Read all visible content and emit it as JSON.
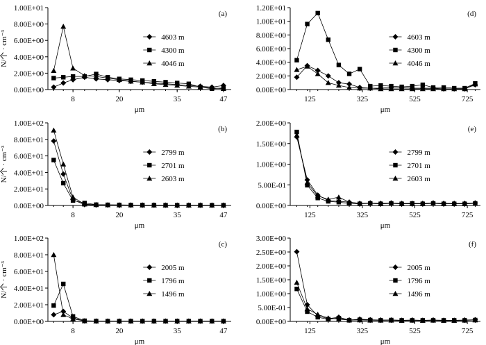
{
  "chart_data": [
    {
      "id": "a",
      "type": "line",
      "panel_label": "(a)",
      "xlabel": "μm",
      "ylabel": "N/个 · cm⁻³",
      "xticks": [
        8,
        20,
        35,
        47
      ],
      "xlim": [
        1.5,
        49
      ],
      "ylim": [
        0,
        10
      ],
      "ytick_labels": [
        "0.00E+00",
        "2.00E+00",
        "4.00E+00",
        "6.00E+00",
        "8.00E+00",
        "1.00E+01"
      ],
      "yticks": [
        0,
        2,
        4,
        6,
        8,
        10
      ],
      "x": [
        3,
        5.5,
        8,
        11,
        14,
        17,
        20,
        23,
        26,
        29,
        32,
        35,
        38,
        41,
        44,
        47
      ],
      "series": [
        {
          "name": "4603  m",
          "marker": "diamond",
          "values": [
            0.3,
            0.8,
            1.2,
            1.5,
            1.3,
            1.2,
            1.1,
            1.0,
            0.9,
            0.8,
            0.7,
            0.6,
            0.5,
            0.4,
            0.3,
            0.5
          ]
        },
        {
          "name": "4300  m",
          "marker": "square",
          "values": [
            1.4,
            1.5,
            1.6,
            1.6,
            1.9,
            1.5,
            1.3,
            1.2,
            1.1,
            1.0,
            0.9,
            0.8,
            0.7,
            0.3,
            0.1,
            0.2
          ]
        },
        {
          "name": "4046  m",
          "marker": "triangle",
          "values": [
            2.3,
            7.7,
            2.6,
            1.7,
            1.6,
            1.4,
            1.2,
            1.0,
            0.9,
            0.7,
            0.6,
            0.5,
            0.4,
            0.3,
            0.2,
            0.1
          ]
        }
      ]
    },
    {
      "id": "b",
      "type": "line",
      "panel_label": "(b)",
      "xlabel": "μm",
      "ylabel": "N/个 · cm⁻³",
      "xticks": [
        8,
        20,
        35,
        47
      ],
      "xlim": [
        1.5,
        49
      ],
      "ylim": [
        0,
        100
      ],
      "ytick_labels": [
        "0.00E+00",
        "2.00E+01",
        "4.00E+01",
        "6.00E+01",
        "8.00E+01",
        "1.00E+02"
      ],
      "yticks": [
        0,
        20,
        40,
        60,
        80,
        100
      ],
      "x": [
        3,
        5.5,
        8,
        11,
        14,
        17,
        20,
        23,
        26,
        29,
        32,
        35,
        38,
        41,
        44,
        47
      ],
      "series": [
        {
          "name": "2799  m",
          "marker": "diamond",
          "values": [
            78,
            38,
            7,
            1,
            0.6,
            0.5,
            0.5,
            0.4,
            0.4,
            0.4,
            0.3,
            0.3,
            0.3,
            0.3,
            0.3,
            0.3
          ]
        },
        {
          "name": "2701  m",
          "marker": "square",
          "values": [
            55,
            27,
            6,
            3,
            1,
            0.8,
            0.7,
            0.5,
            0.5,
            0.4,
            0.4,
            0.3,
            0.3,
            0.3,
            0.3,
            0.3
          ]
        },
        {
          "name": "2603  m",
          "marker": "triangle",
          "values": [
            91,
            50,
            10,
            1.5,
            0.8,
            0.6,
            0.5,
            0.5,
            0.4,
            0.4,
            0.3,
            0.3,
            0.3,
            0.3,
            0.3,
            0.3
          ]
        }
      ]
    },
    {
      "id": "c",
      "type": "line",
      "panel_label": "(c)",
      "xlabel": "μm",
      "ylabel": "N/个 · cm⁻³",
      "xticks": [
        8,
        20,
        35,
        47
      ],
      "xlim": [
        1.5,
        49
      ],
      "ylim": [
        0,
        100
      ],
      "ytick_labels": [
        "0.00E+00",
        "2.00E+01",
        "4.00E+01",
        "6.00E+01",
        "8.00E+01",
        "1.00E+02"
      ],
      "yticks": [
        0,
        20,
        40,
        60,
        80,
        100
      ],
      "x": [
        3,
        5.5,
        8,
        11,
        14,
        17,
        20,
        23,
        26,
        29,
        32,
        35,
        38,
        41,
        44,
        47
      ],
      "series": [
        {
          "name": "2005  m",
          "marker": "diamond",
          "values": [
            8,
            12,
            4,
            0.5,
            0.3,
            0.3,
            0.3,
            0.3,
            0.3,
            0.3,
            0.3,
            0.3,
            0.3,
            0.3,
            0.3,
            0.3
          ]
        },
        {
          "name": "1796  m",
          "marker": "square",
          "values": [
            19,
            45,
            6,
            0.8,
            0.4,
            0.3,
            0.3,
            0.3,
            0.3,
            0.3,
            0.3,
            0.3,
            0.3,
            0.3,
            0.3,
            0.3
          ]
        },
        {
          "name": "1496  m",
          "marker": "triangle",
          "values": [
            80,
            8,
            3,
            0.5,
            0.3,
            0.3,
            0.3,
            0.3,
            0.3,
            0.3,
            0.3,
            0.3,
            0.3,
            0.3,
            0.3,
            0.3
          ]
        }
      ]
    },
    {
      "id": "d",
      "type": "line",
      "panel_label": "(d)",
      "xlabel": "μm",
      "ylabel": "",
      "xticks": [
        125,
        325,
        525,
        725
      ],
      "xlim": [
        50,
        775
      ],
      "ylim": [
        0,
        12
      ],
      "ytick_labels": [
        "0.00E+00",
        "2.00E+00",
        "4.00E+00",
        "6.00E+00",
        "8.00E+00",
        "1.00E+01",
        "1.20E+01"
      ],
      "yticks": [
        0,
        2,
        4,
        6,
        8,
        10,
        12
      ],
      "x": [
        75,
        115,
        155,
        195,
        235,
        275,
        315,
        355,
        395,
        435,
        475,
        515,
        555,
        595,
        635,
        675,
        715,
        755
      ],
      "series": [
        {
          "name": "4603  m",
          "marker": "diamond",
          "values": [
            1.8,
            3.5,
            2.8,
            2.0,
            1.0,
            0.8,
            0.3,
            0.2,
            0.2,
            0.3,
            0.3,
            0.2,
            0.2,
            0.2,
            0.1,
            0.1,
            0.1,
            0.7
          ]
        },
        {
          "name": "4300  m",
          "marker": "square",
          "values": [
            4.3,
            9.6,
            11.2,
            7.3,
            3.6,
            2.3,
            3.0,
            0.5,
            0.6,
            0.5,
            0.4,
            0.5,
            0.7,
            0.3,
            0.3,
            0.2,
            0.2,
            0.9
          ]
        },
        {
          "name": "4046  m",
          "marker": "triangle",
          "values": [
            2.9,
            3.4,
            2.3,
            1.0,
            0.6,
            0.3,
            0.2,
            0.2,
            0.1,
            0.1,
            0.1,
            0.1,
            0.1,
            0.1,
            0.1,
            0.1,
            0.1,
            0.8
          ]
        }
      ]
    },
    {
      "id": "e",
      "type": "line",
      "panel_label": "(e)",
      "xlabel": "μm",
      "ylabel": "",
      "xticks": [
        125,
        325,
        525,
        725
      ],
      "xlim": [
        50,
        775
      ],
      "ylim": [
        0,
        2
      ],
      "ytick_labels": [
        "0.00E+00",
        "5.00E-01",
        "1.00E+00",
        "1.50E+00",
        "2.00E+00"
      ],
      "yticks": [
        0,
        0.5,
        1.0,
        1.5,
        2.0
      ],
      "x": [
        75,
        115,
        155,
        195,
        235,
        275,
        315,
        355,
        395,
        435,
        475,
        515,
        555,
        595,
        635,
        675,
        715,
        755
      ],
      "series": [
        {
          "name": "2799  m",
          "marker": "diamond",
          "values": [
            1.66,
            0.62,
            0.25,
            0.12,
            0.1,
            0.08,
            0.05,
            0.06,
            0.05,
            0.06,
            0.05,
            0.05,
            0.05,
            0.06,
            0.05,
            0.05,
            0.05,
            0.06
          ]
        },
        {
          "name": "2701  m",
          "marker": "square",
          "values": [
            1.78,
            0.49,
            0.18,
            0.1,
            0.08,
            0.05,
            0.04,
            0.05,
            0.04,
            0.05,
            0.04,
            0.05,
            0.04,
            0.05,
            0.04,
            0.04,
            0.04,
            0.05
          ]
        },
        {
          "name": "2603  m",
          "marker": "triangle",
          "values": [
            1.7,
            0.55,
            0.23,
            0.15,
            0.2,
            0.08,
            0.05,
            0.05,
            0.04,
            0.05,
            0.04,
            0.04,
            0.04,
            0.05,
            0.04,
            0.04,
            0.04,
            0.05
          ]
        }
      ]
    },
    {
      "id": "f",
      "type": "line",
      "panel_label": "(f)",
      "xlabel": "μm",
      "ylabel": "",
      "xticks": [
        125,
        325,
        525,
        725
      ],
      "xlim": [
        50,
        775
      ],
      "ylim": [
        0,
        3
      ],
      "ytick_labels": [
        "0.00E+00",
        "5.00E-01",
        "1.00E+00",
        "1.50E+00",
        "2.00E+00",
        "2.50E+00",
        "3.00E+00"
      ],
      "yticks": [
        0,
        0.5,
        1.0,
        1.5,
        2.0,
        2.5,
        3.0
      ],
      "x": [
        75,
        115,
        155,
        195,
        235,
        275,
        315,
        355,
        395,
        435,
        475,
        515,
        555,
        595,
        635,
        675,
        715,
        755
      ],
      "series": [
        {
          "name": "2005  m",
          "marker": "diamond",
          "values": [
            2.51,
            0.6,
            0.2,
            0.1,
            0.15,
            0.05,
            0.08,
            0.06,
            0.05,
            0.05,
            0.04,
            0.05,
            0.04,
            0.05,
            0.04,
            0.04,
            0.05,
            0.06
          ]
        },
        {
          "name": "1796  m",
          "marker": "square",
          "values": [
            1.17,
            0.35,
            0.15,
            0.08,
            0.12,
            0.04,
            0.06,
            0.05,
            0.04,
            0.05,
            0.04,
            0.04,
            0.04,
            0.04,
            0.04,
            0.04,
            0.04,
            0.05
          ]
        },
        {
          "name": "1496  m",
          "marker": "triangle",
          "values": [
            1.4,
            0.45,
            0.25,
            0.12,
            0.08,
            0.05,
            0.05,
            0.04,
            0.04,
            0.04,
            0.03,
            0.04,
            0.03,
            0.04,
            0.03,
            0.03,
            0.04,
            0.05
          ]
        }
      ]
    }
  ]
}
